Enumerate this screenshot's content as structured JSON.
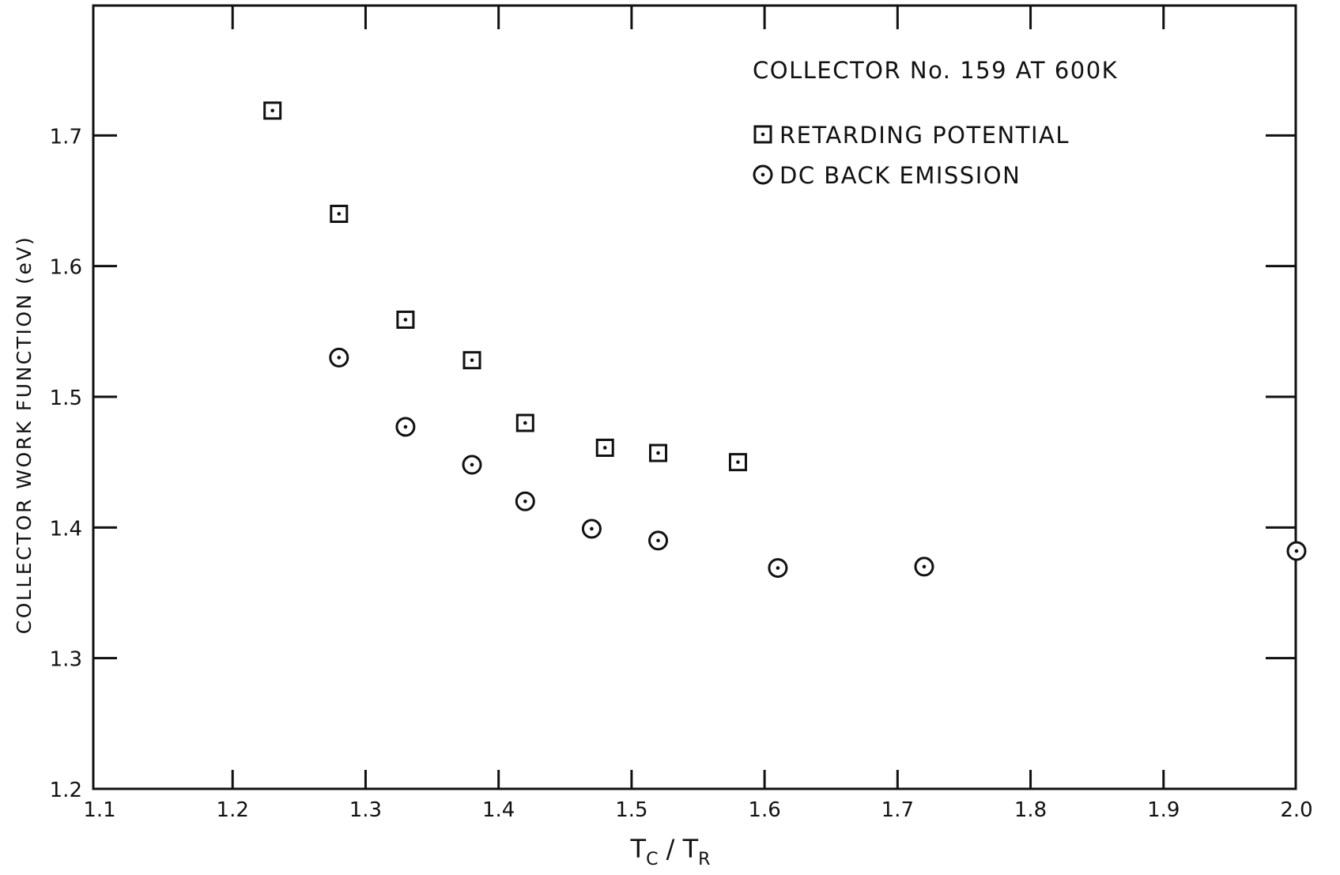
{
  "chart_data": {
    "type": "scatter",
    "title": "COLLECTOR No. 159 AT 600K",
    "xlabel": {
      "main1": "T",
      "sub1": "C",
      "sep": " / ",
      "main2": "T",
      "sub2": "R"
    },
    "ylabel": "COLLECTOR WORK FUNCTION (eV)",
    "xlim": [
      1.1,
      2.0
    ],
    "ylim": [
      1.2,
      1.8
    ],
    "x_ticks": [
      1.1,
      1.2,
      1.3,
      1.4,
      1.5,
      1.6,
      1.7,
      1.8,
      1.9,
      2.0
    ],
    "x_tick_labels": [
      "1.1",
      "1.2",
      "1.3",
      "1.4",
      "1.5",
      "1.6",
      "1.7",
      "1.8",
      "1.9",
      "2.0"
    ],
    "y_ticks": [
      1.2,
      1.3,
      1.4,
      1.5,
      1.6,
      1.7
    ],
    "y_tick_labels": [
      "1.2",
      "1.3",
      "1.4",
      "1.5",
      "1.6",
      "1.7"
    ],
    "grid": false,
    "legend_position": "top-right",
    "series": [
      {
        "name": "RETARDING POTENTIAL",
        "marker": "square-dot",
        "color": "#111111",
        "points": [
          {
            "x": 1.23,
            "y": 1.719
          },
          {
            "x": 1.28,
            "y": 1.64
          },
          {
            "x": 1.33,
            "y": 1.559
          },
          {
            "x": 1.38,
            "y": 1.528
          },
          {
            "x": 1.42,
            "y": 1.48
          },
          {
            "x": 1.48,
            "y": 1.461
          },
          {
            "x": 1.52,
            "y": 1.457
          },
          {
            "x": 1.58,
            "y": 1.45
          }
        ]
      },
      {
        "name": "DC BACK EMISSION",
        "marker": "circle-dot",
        "color": "#111111",
        "points": [
          {
            "x": 1.28,
            "y": 1.53
          },
          {
            "x": 1.33,
            "y": 1.477
          },
          {
            "x": 1.38,
            "y": 1.448
          },
          {
            "x": 1.42,
            "y": 1.42
          },
          {
            "x": 1.47,
            "y": 1.399
          },
          {
            "x": 1.52,
            "y": 1.39
          },
          {
            "x": 1.61,
            "y": 1.369
          },
          {
            "x": 1.72,
            "y": 1.37
          },
          {
            "x": 2.0,
            "y": 1.382
          }
        ]
      }
    ]
  }
}
